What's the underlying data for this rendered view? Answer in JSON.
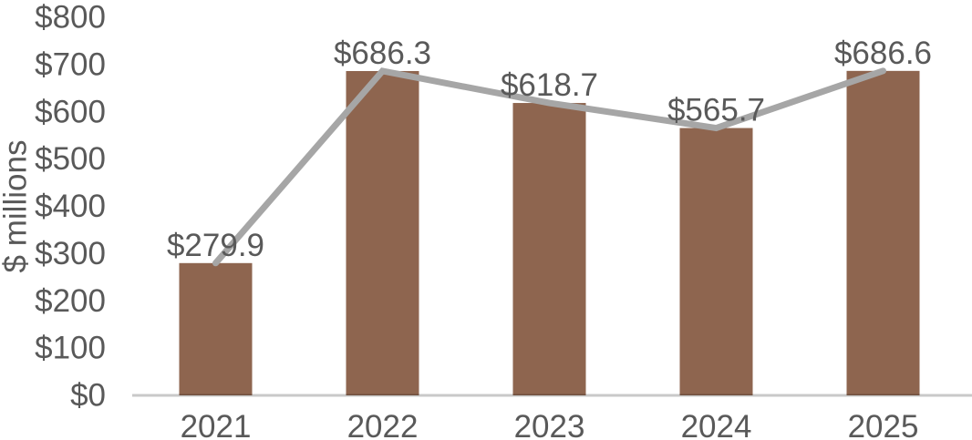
{
  "chart_data": {
    "type": "bar",
    "title": "",
    "categories": [
      "2021",
      "2022",
      "2023",
      "2024",
      "2025"
    ],
    "series": [
      {
        "name": "revenue-bars",
        "type": "bar",
        "values": [
          279.9,
          686.3,
          618.7,
          565.7,
          686.6
        ]
      },
      {
        "name": "revenue-trend-line",
        "type": "line",
        "values": [
          279.9,
          686.3,
          618.7,
          565.7,
          686.6
        ]
      }
    ],
    "data_labels": [
      "$279.9",
      "$686.3",
      "$618.7",
      "$565.7",
      "$686.6"
    ],
    "xlabel": "",
    "ylabel": "$ millions",
    "ylim": [
      0,
      800
    ],
    "ytick_step": 100,
    "ytick_labels": [
      "$0",
      "$100",
      "$200",
      "$300",
      "$400",
      "$500",
      "$600",
      "$700",
      "$800"
    ],
    "grid": false,
    "legend": "none"
  },
  "colors": {
    "bar": "#8E654F",
    "line": "#A6A6A6",
    "axis_line": "#C9C9C9",
    "text": "#595959",
    "background": "#FFFFFF"
  }
}
